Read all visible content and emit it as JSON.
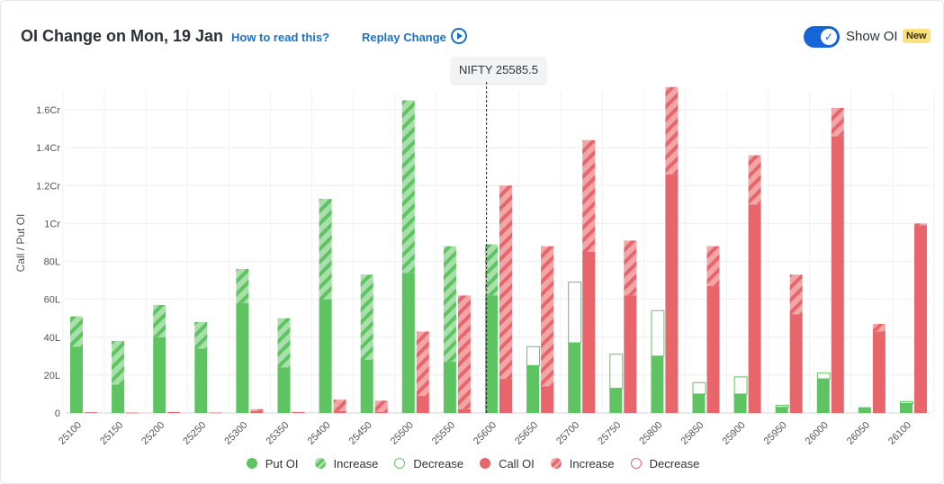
{
  "header": {
    "title": "OI Change on Mon, 19 Jan",
    "how_to_read": "How to read this?",
    "replay": "Replay Change",
    "show_oi": "Show OI",
    "badge": "New"
  },
  "tooltip": "NIFTY 25585.5",
  "colors": {
    "put": "#5ec462",
    "put_increase": "#a9dfaa",
    "call": "#e8666b",
    "call_increase": "#f2a6a8",
    "accent": "#1a73c9",
    "toggle": "#1565d8"
  },
  "chart_data": {
    "type": "bar",
    "ylabel": "Call / Put OI",
    "ylim": [
      0,
      170
    ],
    "yticks": [
      0,
      20,
      40,
      60,
      80,
      100,
      120,
      140,
      160
    ],
    "ytick_labels": [
      "0",
      "20L",
      "40L",
      "60L",
      "80L",
      "1Cr",
      "1.2Cr",
      "1.4Cr",
      "1.6Cr"
    ],
    "units": "Lakh",
    "spot_label": "NIFTY 25585.5",
    "spot_value": 25585.5,
    "categories": [
      "25100",
      "25150",
      "25200",
      "25250",
      "25300",
      "25350",
      "25400",
      "25450",
      "25500",
      "25550",
      "25600",
      "25650",
      "25700",
      "25750",
      "25800",
      "25850",
      "25900",
      "25950",
      "26000",
      "26050",
      "26100"
    ],
    "series": [
      {
        "name": "Put OI",
        "values": [
          35,
          15,
          40,
          34,
          58,
          24,
          60,
          28,
          74,
          27,
          62,
          25,
          37,
          13,
          30,
          10,
          10,
          3,
          18,
          3,
          5
        ]
      },
      {
        "name": "Increase",
        "values": [
          16,
          23,
          17,
          14,
          18,
          26,
          53,
          45,
          91,
          61,
          27,
          0,
          0,
          0,
          0,
          0,
          0,
          0,
          0,
          0,
          0
        ]
      },
      {
        "name": "Decrease",
        "values": [
          0,
          0,
          0,
          0,
          0,
          0,
          0,
          0,
          0,
          0,
          0,
          10,
          32,
          18,
          24,
          6,
          9,
          1,
          3,
          0,
          1
        ]
      },
      {
        "name": "Call OI",
        "values": [
          0.4,
          0.2,
          0.5,
          0.2,
          1,
          0.5,
          1,
          0.5,
          9,
          2,
          18,
          14,
          85,
          62,
          126,
          67,
          110,
          52,
          146,
          43,
          99
        ]
      },
      {
        "name": "Increase",
        "values": [
          0,
          0,
          0,
          0,
          1,
          0,
          6,
          6,
          34,
          60,
          102,
          74,
          59,
          29,
          46,
          21,
          26,
          21,
          15,
          4,
          1
        ]
      },
      {
        "name": "Decrease",
        "values": [
          0,
          0,
          0,
          0,
          0,
          0,
          0,
          0,
          0,
          0,
          0,
          0,
          0,
          0,
          0,
          0,
          0,
          0,
          0,
          0,
          0
        ]
      }
    ],
    "grid": true
  },
  "legend": [
    {
      "label": "Put OI",
      "icon": "put-oi-swatch"
    },
    {
      "label": "Increase",
      "icon": "put-increase-swatch"
    },
    {
      "label": "Decrease",
      "icon": "put-decrease-swatch"
    },
    {
      "label": "Call OI",
      "icon": "call-oi-swatch"
    },
    {
      "label": "Increase",
      "icon": "call-increase-swatch"
    },
    {
      "label": "Decrease",
      "icon": "call-decrease-swatch"
    }
  ]
}
